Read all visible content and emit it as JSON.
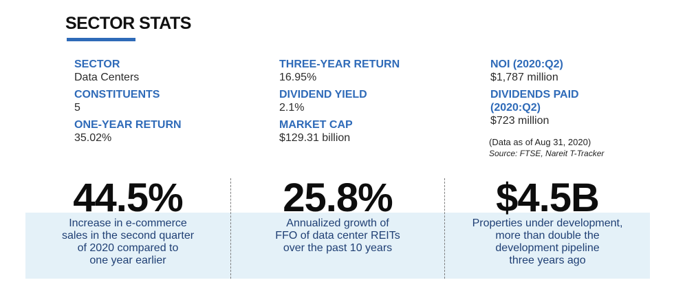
{
  "colors": {
    "accent": "#2e6ab8",
    "band": "#e4f1f8",
    "number": "#0d0d0d",
    "desc": "#1f3f74"
  },
  "header": {
    "title": "SECTOR STATS"
  },
  "stats": {
    "col1": [
      {
        "label": "SECTOR",
        "value": "Data Centers"
      },
      {
        "label": "CONSTITUENTS",
        "value": "5"
      },
      {
        "label": "ONE-YEAR RETURN",
        "value": "35.02%"
      }
    ],
    "col2": [
      {
        "label": "THREE-YEAR RETURN",
        "value": "16.95%"
      },
      {
        "label": "DIVIDEND YIELD",
        "value": "2.1%"
      },
      {
        "label": "MARKET CAP",
        "value": "$129.31 billion"
      }
    ],
    "col3": [
      {
        "label": "NOI (2020:Q2)",
        "value": "$1,787 million"
      },
      {
        "label": "DIVIDENDS PAID",
        "label2": "(2020:Q2)",
        "value": "$723 million"
      }
    ],
    "note_date": "(Data as of Aug 31, 2020)",
    "note_source": "Source: FTSE, Nareit T-Tracker"
  },
  "highlights": [
    {
      "value": "44.5%",
      "lines": [
        "Increase in e-commerce",
        "sales in the second quarter",
        "of 2020 compared to",
        "one year earlier"
      ]
    },
    {
      "value": "25.8%",
      "lines": [
        "Annualized growth of",
        "FFO of data center REITs",
        "over the past 10 years"
      ]
    },
    {
      "value": "$4.5B",
      "lines": [
        "Properties under development,",
        "more than double the",
        "development pipeline",
        "three years ago"
      ]
    }
  ]
}
